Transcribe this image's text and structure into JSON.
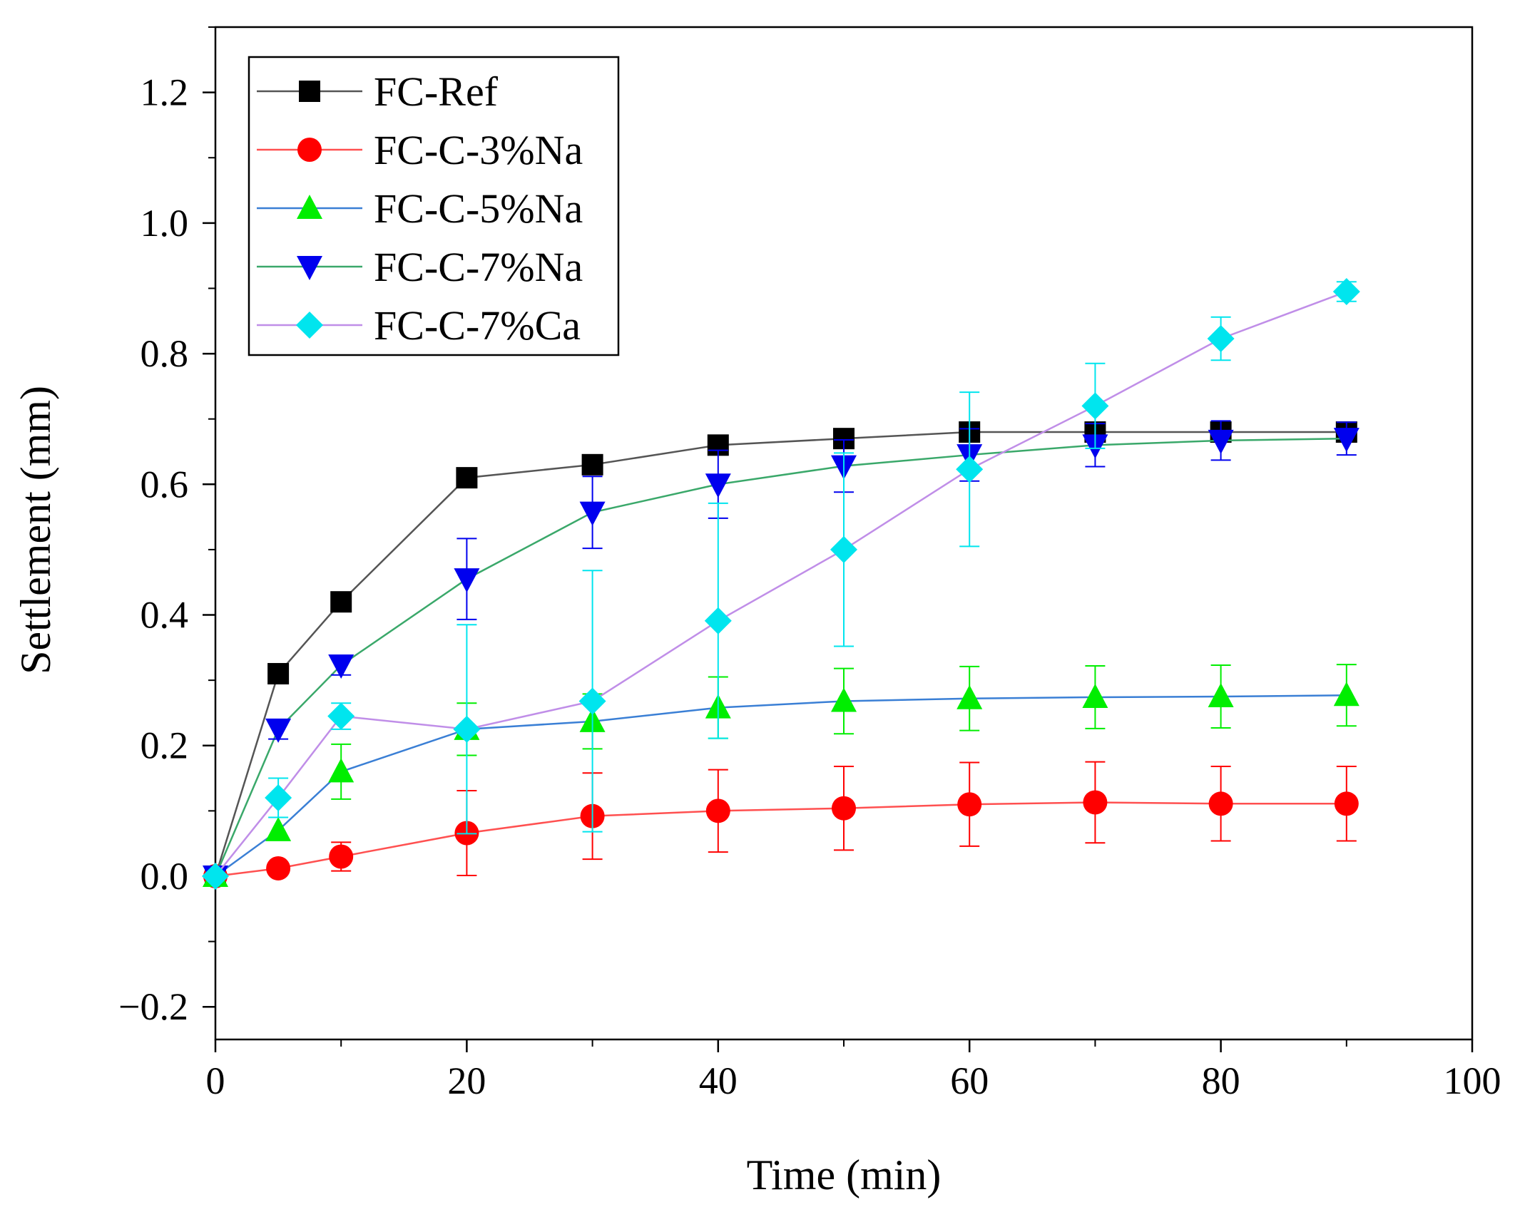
{
  "chart_data": {
    "type": "line",
    "xlabel": "Time (min)",
    "ylabel": "Settlement (mm)",
    "xlim": [
      0,
      100
    ],
    "ylim": [
      -0.25,
      1.3
    ],
    "x_ticks": [
      "0",
      "20",
      "40",
      "60",
      "80",
      "100"
    ],
    "y_ticks": [
      "−0.2",
      "0.0",
      "0.2",
      "0.4",
      "0.6",
      "0.8",
      "1.0",
      "1.2"
    ],
    "grid": false,
    "legend_position": "top-left",
    "x": [
      0,
      5,
      10,
      20,
      30,
      40,
      50,
      60,
      70,
      80,
      90
    ],
    "series": [
      {
        "name": "FC-Ref",
        "marker": "square",
        "marker_color": "#000000",
        "line_color": "#555555",
        "values": [
          0.0,
          0.31,
          0.42,
          0.61,
          0.63,
          0.66,
          0.67,
          0.68,
          0.68,
          0.68,
          0.68
        ],
        "errors": [
          0,
          0,
          0,
          0,
          0,
          0,
          0,
          0,
          0,
          0,
          0
        ]
      },
      {
        "name": "FC-C-3%Na",
        "marker": "circle",
        "marker_color": "#ff0000",
        "line_color": "#ff5050",
        "values": [
          0.0,
          0.012,
          0.03,
          0.066,
          0.092,
          0.1,
          0.104,
          0.11,
          0.113,
          0.111,
          0.111
        ],
        "errors": [
          0,
          0,
          0.022,
          0.065,
          0.066,
          0.063,
          0.064,
          0.064,
          0.062,
          0.057,
          0.057
        ]
      },
      {
        "name": "FC-C-5%Na",
        "marker": "triangle-up",
        "marker_color": "#00ee00",
        "line_color": "#3a7fd5",
        "values": [
          0.0,
          0.07,
          0.16,
          0.225,
          0.237,
          0.258,
          0.268,
          0.272,
          0.274,
          0.275,
          0.277
        ],
        "errors": [
          0,
          0,
          0.042,
          0.04,
          0.042,
          0.047,
          0.05,
          0.049,
          0.048,
          0.048,
          0.047
        ]
      },
      {
        "name": "FC-C-7%Na",
        "marker": "triangle-down",
        "marker_color": "#0000ee",
        "line_color": "#3aa86a",
        "values": [
          0.0,
          0.225,
          0.323,
          0.455,
          0.557,
          0.6,
          0.628,
          0.645,
          0.66,
          0.667,
          0.67
        ],
        "errors": [
          0,
          0.015,
          0.015,
          0.062,
          0.055,
          0.052,
          0.04,
          0.04,
          0.033,
          0.03,
          0.025
        ]
      },
      {
        "name": "FC-C-7%Ca",
        "marker": "diamond",
        "marker_color": "#00e5ee",
        "line_color": "#c08ee8",
        "values": [
          0.0,
          0.12,
          0.245,
          0.225,
          0.268,
          0.391,
          0.5,
          0.623,
          0.72,
          0.823,
          0.895
        ],
        "errors": [
          0,
          0.03,
          0.02,
          0.16,
          0.2,
          0.18,
          0.148,
          0.118,
          0.065,
          0.033,
          0.015
        ]
      }
    ]
  }
}
